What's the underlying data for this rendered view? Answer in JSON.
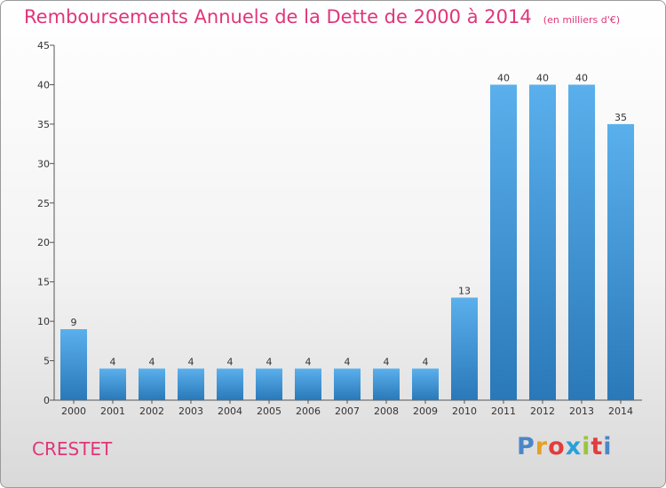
{
  "title": "Remboursements Annuels de la Dette de 2000 à 2014",
  "subtitle": "(en milliers d'€)",
  "commune": "CRESTET",
  "logo": {
    "text": "Proxiti",
    "letter_colors": [
      "#4a86c8",
      "#e8a020",
      "#e23d3d",
      "#2aa0d8",
      "#9bc53d",
      "#e23d3d",
      "#4a86c8"
    ]
  },
  "colors": {
    "title": "#e0357a",
    "bar_top": "#5ab0ec",
    "bar_bottom": "#2a78b8"
  },
  "chart_data": {
    "type": "bar",
    "categories": [
      "2000",
      "2001",
      "2002",
      "2003",
      "2004",
      "2005",
      "2006",
      "2007",
      "2008",
      "2009",
      "2010",
      "2011",
      "2012",
      "2013",
      "2014"
    ],
    "values": [
      9,
      4,
      4,
      4,
      4,
      4,
      4,
      4,
      4,
      4,
      13,
      40,
      40,
      40,
      35
    ],
    "ylim": [
      0,
      45
    ],
    "yticks": [
      0,
      5,
      10,
      15,
      20,
      25,
      30,
      35,
      40,
      45
    ],
    "grid": false,
    "data_labels": true
  }
}
